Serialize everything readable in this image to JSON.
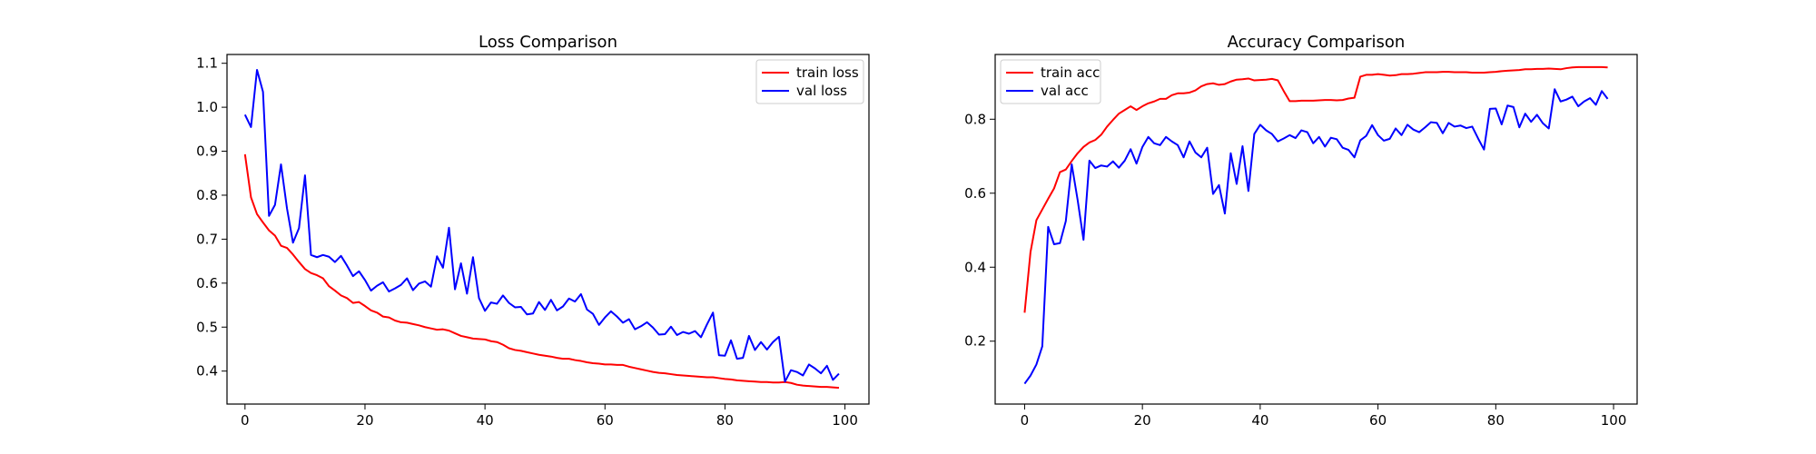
{
  "chart_data": [
    {
      "type": "line",
      "title": "Loss Comparison",
      "xlabel": "",
      "ylabel": "",
      "xlim": [
        -3,
        104
      ],
      "ylim": [
        0.325,
        1.12
      ],
      "xticks": [
        0,
        20,
        40,
        60,
        80,
        100
      ],
      "yticks": [
        0.4,
        0.5,
        0.6,
        0.7,
        0.8,
        0.9,
        1.0,
        1.1
      ],
      "ytick_labels": [
        "0.4",
        "0.5",
        "0.6",
        "0.7",
        "0.8",
        "0.9",
        "1.0",
        "1.1"
      ],
      "grid": false,
      "legend": "top-right",
      "series": [
        {
          "name": "train loss",
          "color": "#ff0000",
          "x": [
            0,
            1,
            2,
            3,
            4,
            5,
            6,
            7,
            8,
            9,
            10,
            11,
            12,
            13,
            14,
            15,
            16,
            17,
            18,
            19,
            20,
            21,
            22,
            23,
            24,
            25,
            26,
            27,
            28,
            29,
            30,
            31,
            32,
            33,
            34,
            35,
            36,
            37,
            38,
            39,
            40,
            41,
            42,
            43,
            44,
            45,
            46,
            47,
            48,
            49,
            50,
            51,
            52,
            53,
            54,
            55,
            56,
            57,
            58,
            59,
            60,
            61,
            62,
            63,
            64,
            65,
            66,
            67,
            68,
            69,
            70,
            71,
            72,
            73,
            74,
            75,
            76,
            77,
            78,
            79,
            80,
            81,
            82,
            83,
            84,
            85,
            86,
            87,
            88,
            89,
            90,
            91,
            92,
            93,
            94,
            95,
            96,
            97,
            98,
            99
          ],
          "values": [
            0.893,
            0.795,
            0.757,
            0.738,
            0.72,
            0.708,
            0.685,
            0.68,
            0.665,
            0.648,
            0.632,
            0.623,
            0.618,
            0.611,
            0.593,
            0.583,
            0.572,
            0.566,
            0.555,
            0.557,
            0.548,
            0.538,
            0.533,
            0.524,
            0.522,
            0.515,
            0.511,
            0.51,
            0.507,
            0.504,
            0.5,
            0.497,
            0.494,
            0.495,
            0.492,
            0.486,
            0.48,
            0.477,
            0.474,
            0.473,
            0.472,
            0.468,
            0.466,
            0.46,
            0.452,
            0.448,
            0.446,
            0.443,
            0.44,
            0.437,
            0.435,
            0.433,
            0.43,
            0.428,
            0.428,
            0.425,
            0.423,
            0.42,
            0.418,
            0.417,
            0.415,
            0.415,
            0.414,
            0.414,
            0.41,
            0.407,
            0.404,
            0.401,
            0.398,
            0.396,
            0.395,
            0.393,
            0.391,
            0.39,
            0.389,
            0.388,
            0.387,
            0.386,
            0.386,
            0.384,
            0.382,
            0.381,
            0.379,
            0.378,
            0.377,
            0.376,
            0.375,
            0.375,
            0.374,
            0.374,
            0.375,
            0.373,
            0.369,
            0.367,
            0.366,
            0.365,
            0.364,
            0.364,
            0.363,
            0.362
          ]
        },
        {
          "name": "val loss",
          "color": "#0000ff",
          "x": [
            0,
            1,
            2,
            3,
            4,
            5,
            6,
            7,
            8,
            9,
            10,
            11,
            12,
            13,
            14,
            15,
            16,
            17,
            18,
            19,
            20,
            21,
            22,
            23,
            24,
            25,
            26,
            27,
            28,
            29,
            30,
            31,
            32,
            33,
            34,
            35,
            36,
            37,
            38,
            39,
            40,
            41,
            42,
            43,
            44,
            45,
            46,
            47,
            48,
            49,
            50,
            51,
            52,
            53,
            54,
            55,
            56,
            57,
            58,
            59,
            60,
            61,
            62,
            63,
            64,
            65,
            66,
            67,
            68,
            69,
            70,
            71,
            72,
            73,
            74,
            75,
            76,
            77,
            78,
            79,
            80,
            81,
            82,
            83,
            84,
            85,
            86,
            87,
            88,
            89,
            90,
            91,
            92,
            93,
            94,
            95,
            96,
            97,
            98,
            99
          ],
          "values": [
            0.983,
            0.955,
            1.085,
            1.035,
            0.753,
            0.778,
            0.87,
            0.77,
            0.692,
            0.725,
            0.845,
            0.664,
            0.659,
            0.664,
            0.66,
            0.648,
            0.662,
            0.64,
            0.616,
            0.627,
            0.607,
            0.583,
            0.594,
            0.602,
            0.581,
            0.588,
            0.596,
            0.611,
            0.584,
            0.599,
            0.604,
            0.592,
            0.661,
            0.635,
            0.726,
            0.586,
            0.645,
            0.576,
            0.659,
            0.566,
            0.537,
            0.556,
            0.553,
            0.572,
            0.555,
            0.545,
            0.546,
            0.529,
            0.531,
            0.557,
            0.539,
            0.562,
            0.538,
            0.547,
            0.565,
            0.558,
            0.575,
            0.54,
            0.53,
            0.505,
            0.522,
            0.536,
            0.524,
            0.51,
            0.518,
            0.495,
            0.502,
            0.511,
            0.499,
            0.483,
            0.484,
            0.501,
            0.482,
            0.489,
            0.485,
            0.491,
            0.477,
            0.506,
            0.533,
            0.436,
            0.435,
            0.47,
            0.428,
            0.43,
            0.48,
            0.448,
            0.466,
            0.449,
            0.466,
            0.478,
            0.376,
            0.402,
            0.398,
            0.39,
            0.415,
            0.406,
            0.395,
            0.412,
            0.38,
            0.394
          ]
        }
      ]
    },
    {
      "type": "line",
      "title": "Accuracy Comparison",
      "xlabel": "",
      "ylabel": "",
      "xlim": [
        -5,
        104
      ],
      "ylim": [
        0.03,
        0.975
      ],
      "xticks": [
        0,
        20,
        40,
        60,
        80,
        100
      ],
      "yticks": [
        0.2,
        0.4,
        0.6,
        0.8
      ],
      "ytick_labels": [
        "0.2",
        "0.4",
        "0.6",
        "0.8"
      ],
      "grid": false,
      "legend": "top-left",
      "series": [
        {
          "name": "train acc",
          "color": "#ff0000",
          "x": [
            0,
            1,
            2,
            3,
            4,
            5,
            6,
            7,
            8,
            9,
            10,
            11,
            12,
            13,
            14,
            15,
            16,
            17,
            18,
            19,
            20,
            21,
            22,
            23,
            24,
            25,
            26,
            27,
            28,
            29,
            30,
            31,
            32,
            33,
            34,
            35,
            36,
            37,
            38,
            39,
            40,
            41,
            42,
            43,
            44,
            45,
            46,
            47,
            48,
            49,
            50,
            51,
            52,
            53,
            54,
            55,
            56,
            57,
            58,
            59,
            60,
            61,
            62,
            63,
            64,
            65,
            66,
            67,
            68,
            69,
            70,
            71,
            72,
            73,
            74,
            75,
            76,
            77,
            78,
            79,
            80,
            81,
            82,
            83,
            84,
            85,
            86,
            87,
            88,
            89,
            90,
            91,
            92,
            93,
            94,
            95,
            96,
            97,
            98,
            99
          ],
          "values": [
            0.277,
            0.441,
            0.527,
            0.556,
            0.585,
            0.613,
            0.657,
            0.664,
            0.687,
            0.708,
            0.725,
            0.737,
            0.744,
            0.758,
            0.78,
            0.798,
            0.815,
            0.825,
            0.835,
            0.825,
            0.835,
            0.843,
            0.848,
            0.855,
            0.855,
            0.865,
            0.87,
            0.87,
            0.872,
            0.878,
            0.889,
            0.895,
            0.897,
            0.893,
            0.895,
            0.902,
            0.907,
            0.908,
            0.91,
            0.905,
            0.906,
            0.907,
            0.909,
            0.905,
            0.876,
            0.849,
            0.849,
            0.85,
            0.85,
            0.85,
            0.851,
            0.852,
            0.852,
            0.851,
            0.852,
            0.856,
            0.858,
            0.915,
            0.92,
            0.92,
            0.922,
            0.92,
            0.918,
            0.919,
            0.922,
            0.922,
            0.923,
            0.925,
            0.927,
            0.927,
            0.927,
            0.928,
            0.928,
            0.927,
            0.927,
            0.927,
            0.926,
            0.926,
            0.926,
            0.927,
            0.928,
            0.93,
            0.931,
            0.932,
            0.933,
            0.935,
            0.935,
            0.936,
            0.936,
            0.937,
            0.936,
            0.935,
            0.938,
            0.94,
            0.941,
            0.941,
            0.941,
            0.941,
            0.941,
            0.94
          ]
        },
        {
          "name": "val acc",
          "color": "#0000ff",
          "x": [
            0,
            1,
            2,
            3,
            4,
            5,
            6,
            7,
            8,
            9,
            10,
            11,
            12,
            13,
            14,
            15,
            16,
            17,
            18,
            19,
            20,
            21,
            22,
            23,
            24,
            25,
            26,
            27,
            28,
            29,
            30,
            31,
            32,
            33,
            34,
            35,
            36,
            37,
            38,
            39,
            40,
            41,
            42,
            43,
            44,
            45,
            46,
            47,
            48,
            49,
            50,
            51,
            52,
            53,
            54,
            55,
            56,
            57,
            58,
            59,
            60,
            61,
            62,
            63,
            64,
            65,
            66,
            67,
            68,
            69,
            70,
            71,
            72,
            73,
            74,
            75,
            76,
            77,
            78,
            79,
            80,
            81,
            82,
            83,
            84,
            85,
            86,
            87,
            88,
            89,
            90,
            91,
            92,
            93,
            94,
            95,
            96,
            97,
            98,
            99
          ],
          "values": [
            0.085,
            0.107,
            0.137,
            0.186,
            0.509,
            0.462,
            0.465,
            0.525,
            0.678,
            0.582,
            0.474,
            0.688,
            0.668,
            0.675,
            0.672,
            0.686,
            0.669,
            0.688,
            0.719,
            0.68,
            0.725,
            0.752,
            0.735,
            0.73,
            0.752,
            0.74,
            0.73,
            0.697,
            0.74,
            0.71,
            0.697,
            0.723,
            0.598,
            0.622,
            0.545,
            0.708,
            0.625,
            0.727,
            0.606,
            0.76,
            0.785,
            0.77,
            0.76,
            0.74,
            0.748,
            0.757,
            0.749,
            0.77,
            0.765,
            0.735,
            0.752,
            0.726,
            0.75,
            0.746,
            0.723,
            0.717,
            0.697,
            0.743,
            0.755,
            0.784,
            0.757,
            0.742,
            0.747,
            0.775,
            0.757,
            0.785,
            0.772,
            0.765,
            0.778,
            0.792,
            0.79,
            0.762,
            0.79,
            0.78,
            0.783,
            0.776,
            0.78,
            0.748,
            0.718,
            0.828,
            0.829,
            0.786,
            0.837,
            0.833,
            0.778,
            0.815,
            0.793,
            0.812,
            0.789,
            0.775,
            0.881,
            0.848,
            0.853,
            0.861,
            0.835,
            0.848,
            0.857,
            0.839,
            0.876,
            0.855
          ]
        }
      ]
    }
  ]
}
